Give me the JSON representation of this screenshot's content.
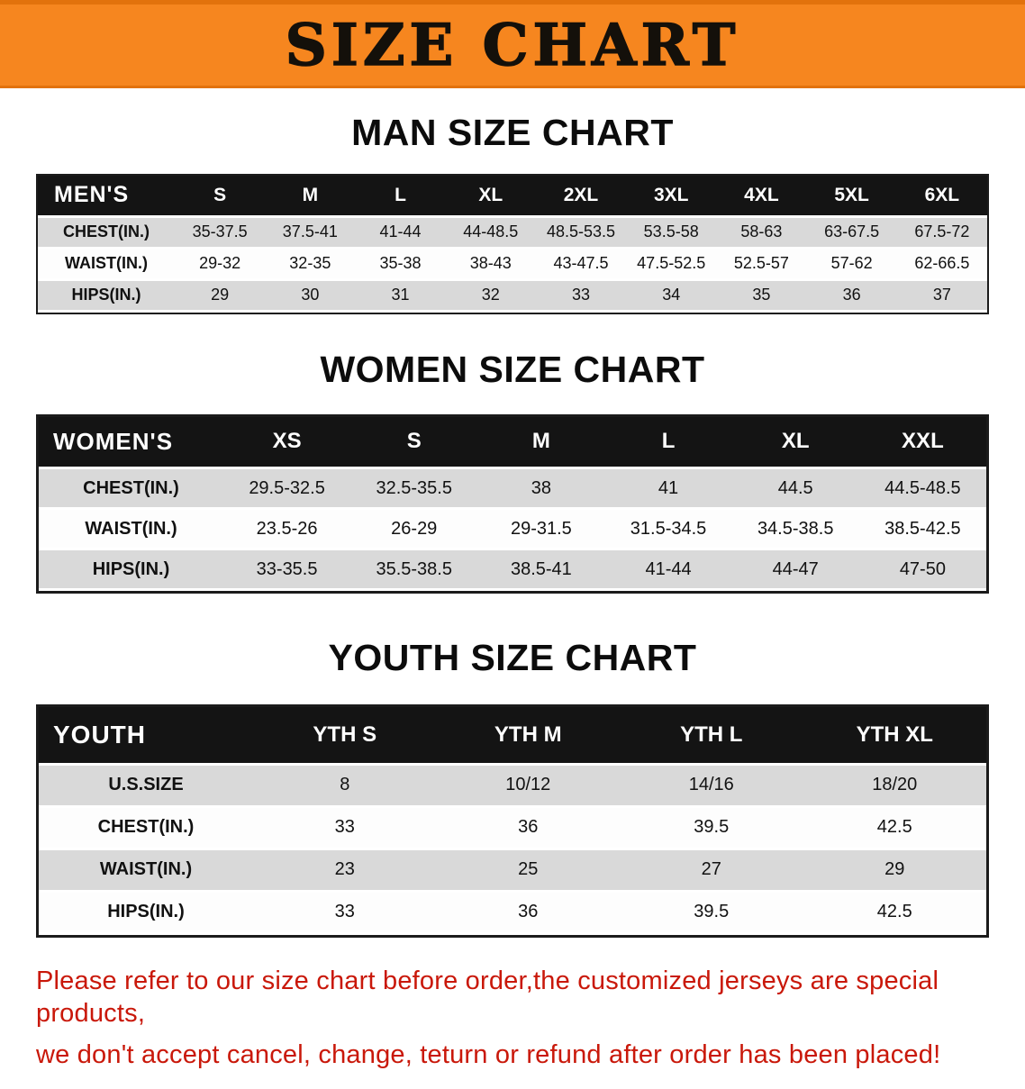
{
  "banner": {
    "title": "SIZE CHART",
    "bg_color": "#F6861F",
    "text_color": "#14100A"
  },
  "sections": {
    "men": {
      "heading": "MAN SIZE CHART",
      "table": {
        "header": [
          "MEN'S",
          "S",
          "M",
          "L",
          "XL",
          "2XL",
          "3XL",
          "4XL",
          "5XL",
          "6XL"
        ],
        "rows": [
          [
            "CHEST(IN.)",
            "35-37.5",
            "37.5-41",
            "41-44",
            "44-48.5",
            "48.5-53.5",
            "53.5-58",
            "58-63",
            "63-67.5",
            "67.5-72"
          ],
          [
            "WAIST(IN.)",
            "29-32",
            "32-35",
            "35-38",
            "38-43",
            "43-47.5",
            "47.5-52.5",
            "52.5-57",
            "57-62",
            "62-66.5"
          ],
          [
            "HIPS(IN.)",
            "29",
            "30",
            "31",
            "32",
            "33",
            "34",
            "35",
            "36",
            "37"
          ]
        ]
      }
    },
    "women": {
      "heading": "WOMEN SIZE CHART",
      "table": {
        "header": [
          "WOMEN'S",
          "XS",
          "S",
          "M",
          "L",
          "XL",
          "XXL"
        ],
        "rows": [
          [
            "CHEST(IN.)",
            "29.5-32.5",
            "32.5-35.5",
            "38",
            "41",
            "44.5",
            "44.5-48.5"
          ],
          [
            "WAIST(IN.)",
            "23.5-26",
            "26-29",
            "29-31.5",
            "31.5-34.5",
            "34.5-38.5",
            "38.5-42.5"
          ],
          [
            "HIPS(IN.)",
            "33-35.5",
            "35.5-38.5",
            "38.5-41",
            "41-44",
            "44-47",
            "47-50"
          ]
        ]
      }
    },
    "youth": {
      "heading": "YOUTH SIZE CHART",
      "table": {
        "header": [
          "YOUTH",
          "YTH S",
          "YTH M",
          "YTH L",
          "YTH XL"
        ],
        "rows": [
          [
            "U.S.SIZE",
            "8",
            "10/12",
            "14/16",
            "18/20"
          ],
          [
            "CHEST(IN.)",
            "33",
            "36",
            "39.5",
            "42.5"
          ],
          [
            "WAIST(IN.)",
            "23",
            "25",
            "27",
            "29"
          ],
          [
            "HIPS(IN.)",
            "33",
            "36",
            "39.5",
            "42.5"
          ]
        ]
      }
    }
  },
  "footer": {
    "color": "#C9180A",
    "lines": [
      "Please refer to our size chart before order,the customized jerseys are special products,",
      "we don't accept cancel, change, teturn or refund after order has been placed!"
    ]
  }
}
